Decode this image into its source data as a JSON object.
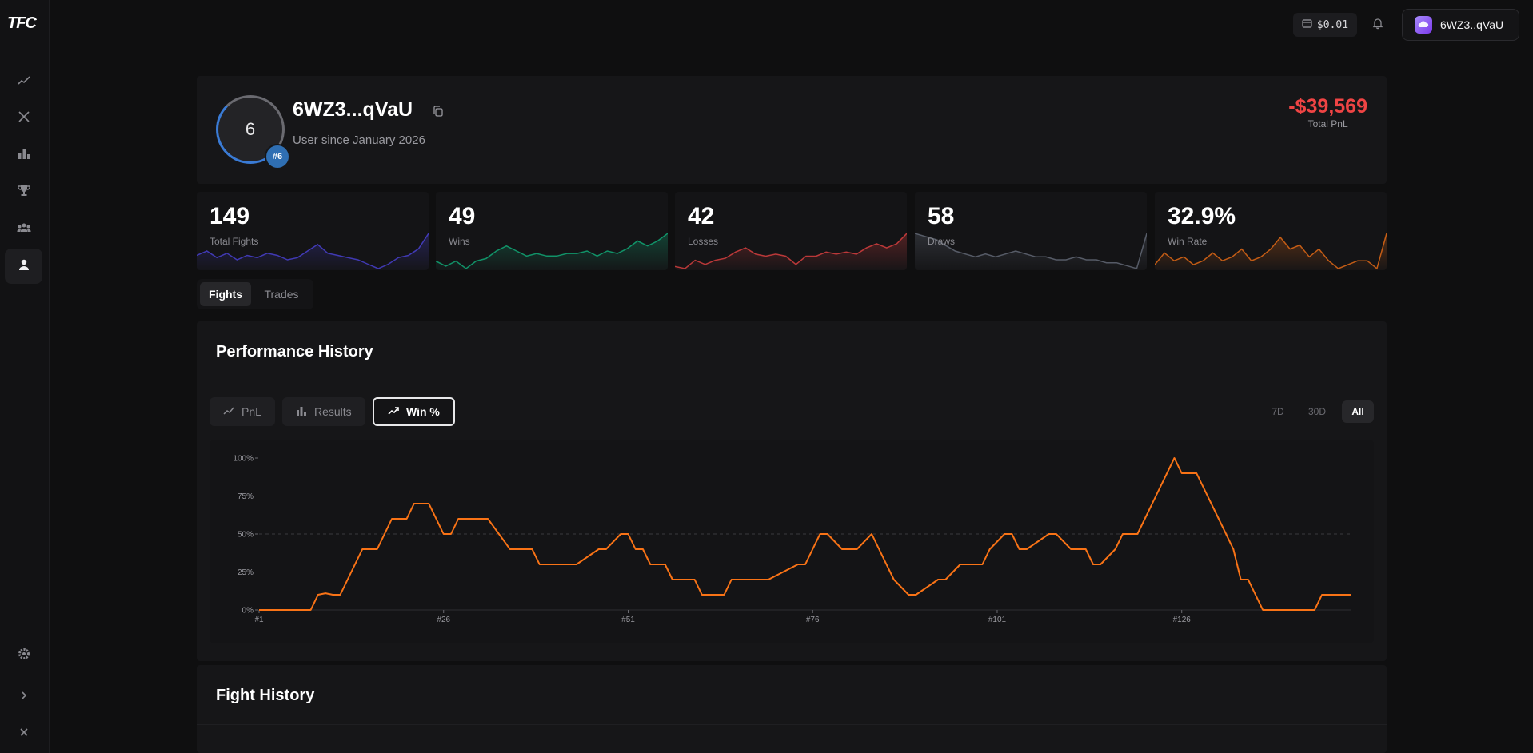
{
  "app": {
    "logo": "TFC"
  },
  "sidebar": {
    "items": [
      {
        "name": "sidebar-item-trading",
        "icon": "line-chart-icon"
      },
      {
        "name": "sidebar-item-fights",
        "icon": "crossed-swords-icon"
      },
      {
        "name": "sidebar-item-stats",
        "icon": "bar-chart-icon"
      },
      {
        "name": "sidebar-item-leaderboard",
        "icon": "trophy-icon"
      },
      {
        "name": "sidebar-item-community",
        "icon": "users-icon"
      },
      {
        "name": "sidebar-item-profile",
        "icon": "user-icon",
        "active": true
      }
    ]
  },
  "topbar": {
    "balance": "$0.01",
    "user_label": "6WZ3..qVaU"
  },
  "profile": {
    "avatar_letter": "6",
    "rank_badge": "#6",
    "name": "6WZ3...qVaU",
    "since": "User since January 2026",
    "total_pnl": "-$39,569",
    "total_pnl_label": "Total PnL"
  },
  "stats": [
    {
      "value": "149",
      "label": "Total Fights",
      "color": "#4f46e5",
      "spark": [
        6,
        8,
        5,
        7,
        4,
        6,
        5,
        7,
        6,
        4,
        5,
        8,
        11,
        7,
        6,
        5,
        4,
        2,
        0,
        2,
        5,
        6,
        9,
        16
      ]
    },
    {
      "value": "49",
      "label": "Wins",
      "color": "#10b981",
      "spark": [
        3,
        1,
        3,
        0,
        3,
        4,
        7,
        9,
        7,
        5,
        6,
        5,
        5,
        6,
        6,
        7,
        5,
        7,
        6,
        8,
        11,
        9,
        11,
        14
      ]
    },
    {
      "value": "42",
      "label": "Losses",
      "color": "#ef4444",
      "spark": [
        2,
        1,
        5,
        3,
        5,
        6,
        9,
        11,
        8,
        7,
        8,
        7,
        3,
        7,
        7,
        9,
        8,
        9,
        8,
        11,
        13,
        11,
        13,
        18
      ]
    },
    {
      "value": "58",
      "label": "Draws",
      "color": "#6b7280",
      "spark": [
        12,
        11,
        10,
        8,
        6,
        5,
        4,
        5,
        4,
        5,
        6,
        5,
        4,
        4,
        3,
        3,
        4,
        3,
        3,
        2,
        2,
        1,
        0,
        12
      ]
    },
    {
      "value": "32.9%",
      "label": "Win Rate",
      "color": "#f97316",
      "spark": [
        5,
        8,
        6,
        7,
        5,
        6,
        8,
        6,
        7,
        9,
        6,
        7,
        9,
        12,
        9,
        10,
        7,
        9,
        6,
        4,
        5,
        6,
        6,
        4,
        13
      ]
    }
  ],
  "mode_tabs": [
    {
      "label": "Fights",
      "active": true
    },
    {
      "label": "Trades",
      "active": false
    }
  ],
  "performance": {
    "title": "Performance History",
    "chart_tabs": [
      {
        "label": "PnL",
        "icon": "line-chart-icon",
        "active": false
      },
      {
        "label": "Results",
        "icon": "bar-chart-icon",
        "active": false
      },
      {
        "label": "Win %",
        "icon": "trending-up-icon",
        "active": true
      }
    ],
    "range_tabs": [
      {
        "label": "7D",
        "active": false
      },
      {
        "label": "30D",
        "active": false
      },
      {
        "label": "All",
        "active": true
      }
    ]
  },
  "chart_data": {
    "type": "line",
    "title": "",
    "xlabel": "",
    "ylabel": "",
    "ylim": [
      0,
      100
    ],
    "xlim": [
      1,
      149
    ],
    "y_ticks": [
      "0%",
      "25%",
      "50%",
      "75%",
      "100%"
    ],
    "x_ticks": [
      "#1",
      "#26",
      "#51",
      "#76",
      "#101",
      "#126"
    ],
    "x_tick_values": [
      1,
      26,
      51,
      76,
      101,
      126
    ],
    "reference_line": 50,
    "line_color": "#f97316",
    "x": [
      1,
      8,
      9,
      10,
      11,
      12,
      15,
      16,
      17,
      18,
      19,
      21,
      22,
      23,
      24,
      25,
      26,
      27,
      28,
      30,
      31,
      32,
      35,
      36,
      37,
      38,
      39,
      40,
      43,
      44,
      47,
      48,
      50,
      51,
      52,
      53,
      54,
      56,
      57,
      60,
      61,
      64,
      65,
      66,
      67,
      69,
      70,
      74,
      75,
      76,
      77,
      78,
      80,
      81,
      82,
      84,
      85,
      86,
      87,
      89,
      90,
      93,
      94,
      96,
      97,
      99,
      100,
      102,
      103,
      104,
      105,
      108,
      109,
      111,
      113,
      114,
      115,
      117,
      118,
      120,
      121,
      122,
      123,
      125,
      126,
      128,
      129,
      131,
      133,
      134,
      135,
      137,
      144,
      145,
      149
    ],
    "y": [
      0,
      0,
      10,
      11,
      10,
      10,
      40,
      40,
      40,
      50,
      60,
      60,
      70,
      70,
      70,
      60,
      50,
      50,
      60,
      60,
      60,
      60,
      40,
      40,
      40,
      40,
      30,
      30,
      30,
      30,
      40,
      40,
      50,
      50,
      40,
      40,
      30,
      30,
      20,
      20,
      10,
      10,
      20,
      20,
      20,
      20,
      20,
      30,
      30,
      40,
      50,
      50,
      40,
      40,
      40,
      50,
      40,
      30,
      20,
      10,
      10,
      20,
      20,
      30,
      30,
      30,
      40,
      50,
      50,
      40,
      40,
      50,
      50,
      40,
      40,
      30,
      30,
      40,
      50,
      50,
      60,
      70,
      80,
      100,
      90,
      90,
      80,
      60,
      40,
      20,
      20,
      0,
      0,
      10,
      10
    ]
  },
  "fight_history": {
    "title": "Fight History"
  }
}
